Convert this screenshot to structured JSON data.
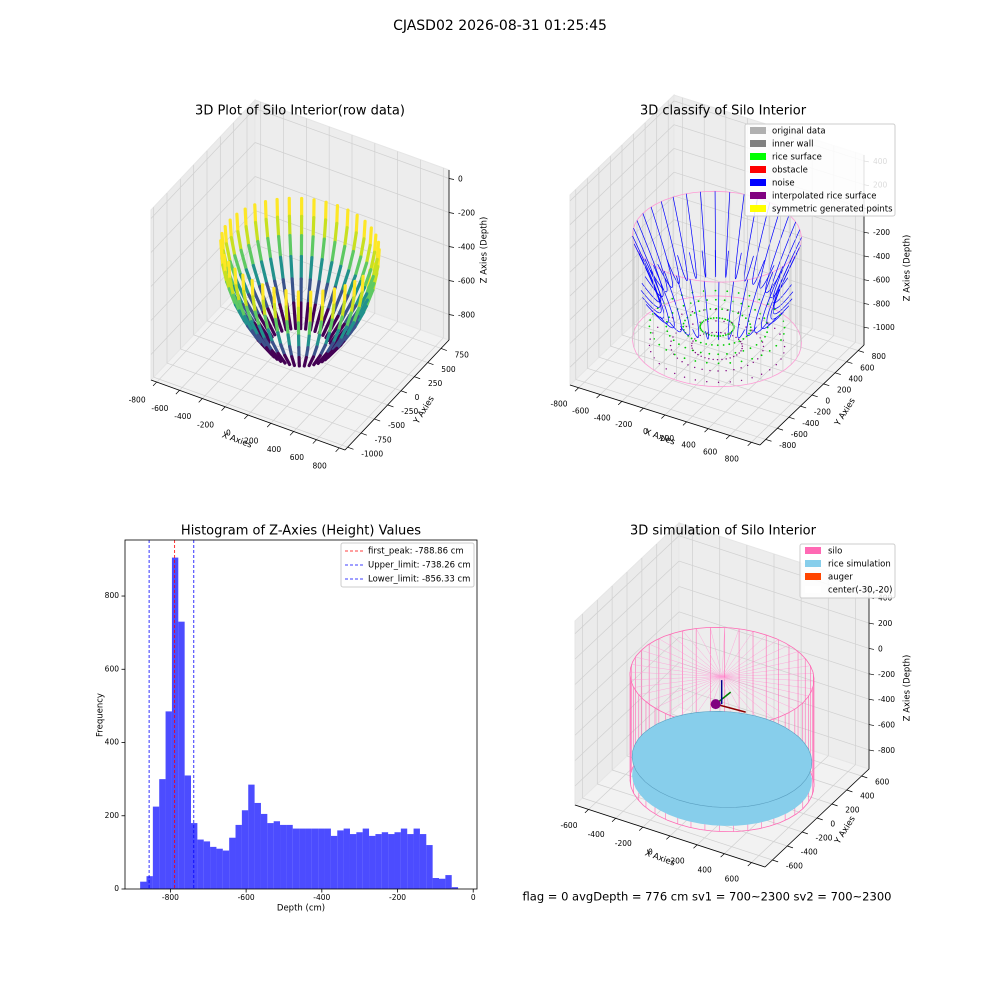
{
  "title": "CJASD02 2026-08-31 01:25:45",
  "footer": "flag = 0     avgDepth = 776 cm  sv1 = 700~2300  sv2 = 700~2300",
  "chart_data": [
    {
      "type": "scatter3d",
      "title": "3D Plot of Silo Interior(row data)",
      "xlabel": "X Axies",
      "ylabel": "Y Axies",
      "zlabel": "Z Axies (Depth)",
      "xlim": [
        -850,
        850
      ],
      "ylim": [
        -1050,
        900
      ],
      "zlim": [
        -950,
        50
      ],
      "xticks": [
        -800,
        -600,
        -400,
        -200,
        0,
        200,
        400,
        600,
        800
      ],
      "yticks": [
        -1000,
        -750,
        -500,
        -250,
        0,
        250,
        500,
        750
      ],
      "zticks": [
        -800,
        -600,
        -400,
        -200,
        0
      ]
    },
    {
      "type": "classify3d",
      "title": "3D classify of Silo Interior",
      "xlabel": "X Axies",
      "ylabel": "Y Axies",
      "zlabel": "Z Axies (Depth)",
      "xlim": [
        -880,
        880
      ],
      "ylim": [
        -900,
        900
      ],
      "zlim": [
        -1150,
        450
      ],
      "xticks": [
        -800,
        -600,
        -400,
        -200,
        0,
        200,
        400,
        600,
        800
      ],
      "yticks": [
        -800,
        -600,
        -400,
        -200,
        0,
        200,
        400,
        600,
        800
      ],
      "zticks": [
        -1000,
        -800,
        -600,
        -400,
        -200,
        0,
        200,
        400
      ],
      "legend": [
        {
          "name": "original data",
          "color": "#b0b0b0"
        },
        {
          "name": "inner wall",
          "color": "#808080"
        },
        {
          "name": "rice surface",
          "color": "#00ff00"
        },
        {
          "name": "obstacle",
          "color": "#ff0000"
        },
        {
          "name": "noise",
          "color": "#0000ff"
        },
        {
          "name": "interpolated rice surface",
          "color": "#800080"
        },
        {
          "name": "symmetric generated points",
          "color": "#ffff00"
        }
      ]
    },
    {
      "type": "histogram",
      "title": "Histogram of Z-Axies (Height) Values",
      "xlabel": "Depth (cm)",
      "ylabel": "Frequency",
      "color": "#0000ff",
      "xlim": [
        -920,
        10
      ],
      "ylim": [
        0,
        953
      ],
      "xticks": [
        -800,
        -600,
        -400,
        -200,
        0
      ],
      "yticks": [
        0,
        200,
        400,
        600,
        800
      ],
      "bins": [
        -880,
        -863.2,
        -846.4,
        -829.6,
        -812.8,
        -796,
        -779.2,
        -762.4,
        -745.6,
        -728.8,
        -712,
        -695.2,
        -678.4,
        -661.6,
        -644.8,
        -628,
        -611.2,
        -594.4,
        -577.6,
        -560.8,
        -544,
        -527.2,
        -510.4,
        -493.6,
        -476.8,
        -460,
        -443.2,
        -426.4,
        -409.6,
        -392.8,
        -376,
        -359.2,
        -342.4,
        -325.6,
        -308.8,
        -292,
        -275.2,
        -258.4,
        -241.6,
        -224.8,
        -208,
        -191.2,
        -174.4,
        -157.6,
        -140.8,
        -124,
        -107.2,
        -90.4,
        -73.6,
        -56.8,
        -40
      ],
      "counts": [
        20,
        35,
        225,
        300,
        485,
        905,
        730,
        310,
        180,
        135,
        130,
        115,
        110,
        105,
        140,
        175,
        215,
        285,
        235,
        205,
        180,
        185,
        175,
        175,
        165,
        165,
        165,
        165,
        165,
        165,
        145,
        160,
        165,
        150,
        155,
        165,
        145,
        150,
        155,
        150,
        155,
        165,
        150,
        165,
        150,
        120,
        30,
        28,
        38,
        5
      ],
      "lines": [
        {
          "name": "first_peak: -788.86 cm",
          "value": -788.86,
          "color": "#ff0000"
        },
        {
          "name": "Upper_limit: -738.26 cm",
          "value": -738.26,
          "color": "#0000ff"
        },
        {
          "name": "Lower_limit: -856.33 cm",
          "value": -856.33,
          "color": "#0000ff"
        }
      ]
    },
    {
      "type": "surface3d",
      "title": "3D simulation of Silo Interior",
      "xlabel": "X Axies",
      "ylabel": "Y Axies",
      "zlabel": "Z Axies (Depth)",
      "xlim": [
        -700,
        700
      ],
      "ylim": [
        -700,
        700
      ],
      "zlim": [
        -950,
        500
      ],
      "xticks": [
        -600,
        -400,
        -200,
        0,
        200,
        400,
        600
      ],
      "yticks": [
        -600,
        -400,
        -200,
        0,
        200,
        400,
        600
      ],
      "zticks": [
        -800,
        -600,
        -400,
        -200,
        0,
        200,
        400
      ],
      "legend": [
        {
          "name": "silo",
          "color": "#ff69b4"
        },
        {
          "name": "rice simulation",
          "color": "#87ceeb"
        },
        {
          "name": "auger",
          "color": "#ff4500"
        },
        {
          "name": "center(-30,-20)",
          "color": "#ffffff"
        }
      ]
    }
  ]
}
